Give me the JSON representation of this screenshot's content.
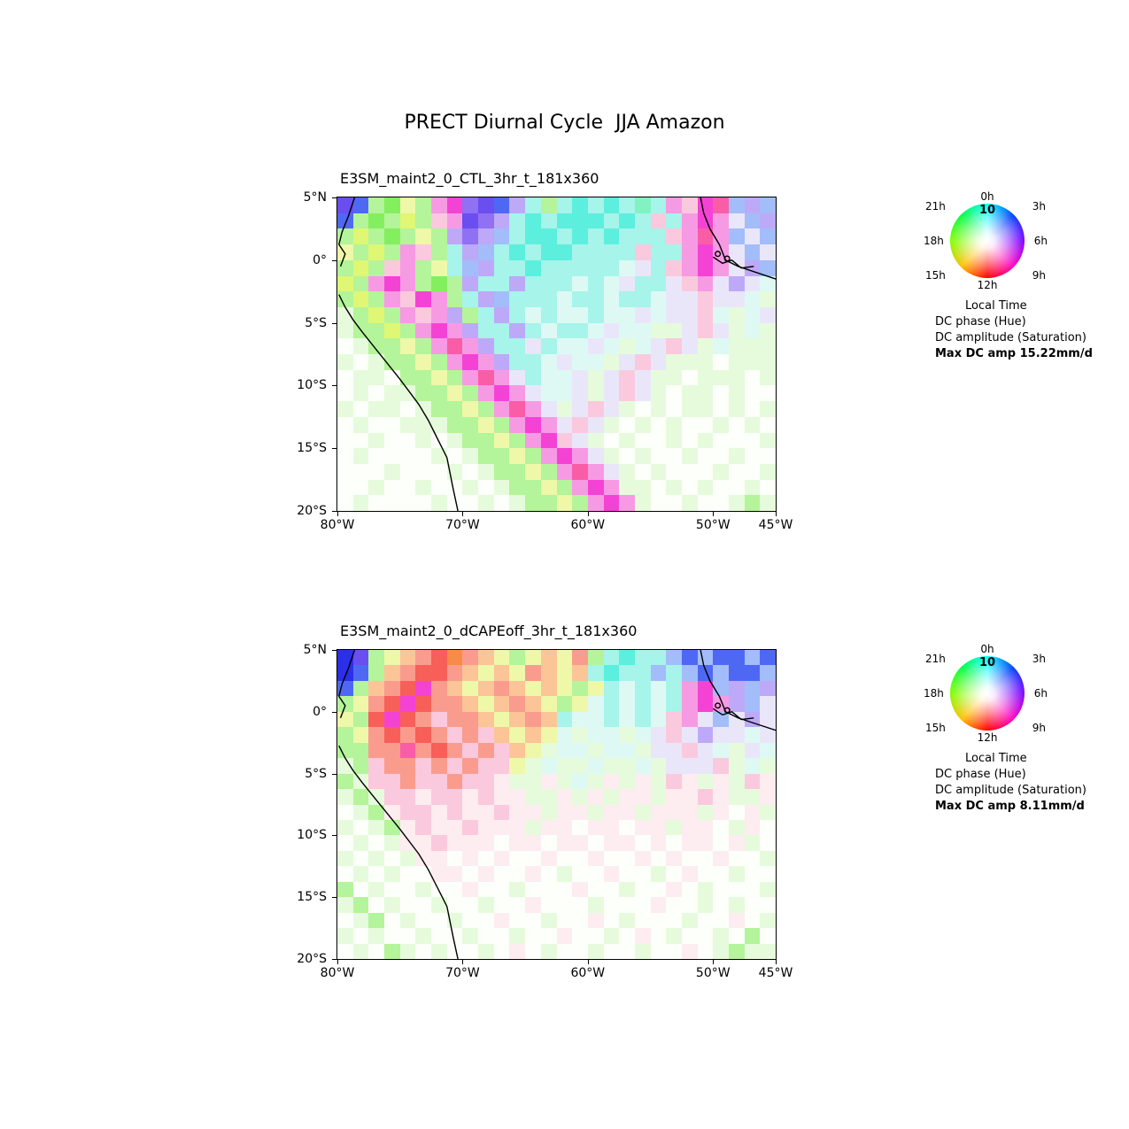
{
  "figure": {
    "title": "PRECT Diurnal Cycle  JJA Amazon"
  },
  "palette": {
    "W": "#fcfffa",
    "f": "#e6fbdc",
    "g": "#b4f49a",
    "G": "#84ef5e",
    "y": "#eef8a8",
    "Y": "#dff773",
    "u": "#def9f4",
    "c": "#a6f4ea",
    "C": "#5cefdd",
    "T": "#83f2c3",
    "b": "#a2bdfa",
    "B": "#4f68f4",
    "A": "#2b2fe8",
    "I": "#6a4ef0",
    "v": "#bda9f8",
    "V": "#9070f3",
    "l": "#eae6fa",
    "m": "#f79ae4",
    "M": "#f443d4",
    "P": "#f95da6",
    "p": "#fbc9dd",
    "e": "#fdecf0",
    "r": "#f99c8e",
    "R": "#f75f58",
    "o": "#fbc597",
    "O": "#f98b48"
  },
  "chart_data": [
    {
      "type": "heatmap",
      "title": "E3SM_maint2_0_CTL_3hr_t_181x360",
      "region": "JJA Amazon",
      "variable": "PRECT diurnal cycle phase (hue) and amplitude (saturation)",
      "x_ticks": {
        "labels": [
          "80°W",
          "70°W",
          "60°W",
          "50°W",
          "45°W"
        ],
        "pos": [
          0,
          0.2857,
          0.5714,
          0.8571,
          1
        ]
      },
      "y_ticks": {
        "labels": [
          "5°N",
          "0°",
          "5°S",
          "10°S",
          "15°S",
          "20°S"
        ],
        "pos": [
          0,
          0.2,
          0.4,
          0.6,
          0.8,
          1
        ]
      },
      "lon_range": [
        "80°W",
        "45°W"
      ],
      "lat_range": [
        "5°N",
        "20°S"
      ],
      "legend": {
        "clock_labels": [
          "0h",
          "3h",
          "6h",
          "9h",
          "12h",
          "15h",
          "18h",
          "21h"
        ],
        "amp_ring_label": "10",
        "lines": [
          "Local Time",
          "DC phase (Hue)",
          "DC amplitude (Saturation)"
        ],
        "max_line": "Max DC amp 15.22mm/d"
      },
      "rows": [
        "IBgGygmMVIBvcgcCcCcTcmpMPbvb",
        "BgGgYgpmIVvcCcCCCcCcpcmMmlbv",
        "gYgGgygvVvbcCCcCcCcccpmPmblb",
        "ygYgmpgcvbcCcCCccccpccmMmlbl",
        "gYgpmgycbvccCccccculcpmMmlvb",
        "YgmMmgGgvccvcccuculcclpmlvlu",
        "gYgmpMmgcvbcccuccuccullplluf",
        "fgYgmpmvgcvcucuucuulullpuful",
        "fggYgmMmvccvcucculuufflplfuf",
        "WfggygmPmvcclcuulufulplfufff",
        "fWfggygmMmvcculuuflplfffWfff",
        "WffWggygmPmlcuulflplffWfffWf",
        "WfWffggygmMmluulflplfWffWfWW",
        "fWffWfggygmPmlflplfWfWffWfWf",
        "WfWWfffggygmMmlplfWfWfWWfWfW",
        "WWfWWfWfggygmMplfWfWWfWfWWWf",
        "WfWWWWfWfggygmMmlfWfWWfWWfWW",
        "WWWfWWWfWfggygmPmlfWfWWWfWWf",
        "WWfWWfWWfWfggygmMmffWfWfWWfW",
        "WfWWWWfWWfWfggygmMmfWWfWWfgf"
      ]
    },
    {
      "type": "heatmap",
      "title": "E3SM_maint2_0_dCAPEoff_3hr_t_181x360",
      "region": "JJA Amazon",
      "variable": "PRECT diurnal cycle phase (hue) and amplitude (saturation)",
      "x_ticks": {
        "labels": [
          "80°W",
          "70°W",
          "60°W",
          "50°W",
          "45°W"
        ],
        "pos": [
          0,
          0.2857,
          0.5714,
          0.8571,
          1
        ]
      },
      "y_ticks": {
        "labels": [
          "5°N",
          "0°",
          "5°S",
          "10°S",
          "15°S",
          "20°S"
        ],
        "pos": [
          0,
          0.2,
          0.4,
          0.6,
          0.8,
          1
        ]
      },
      "lon_range": [
        "80°W",
        "45°W"
      ],
      "lat_range": [
        "5°N",
        "20°S"
      ],
      "legend": {
        "clock_labels": [
          "0h",
          "3h",
          "6h",
          "9h",
          "12h",
          "15h",
          "18h",
          "21h"
        ],
        "amp_ring_label": "10",
        "lines": [
          "Local Time",
          "DC phase (Hue)",
          "DC amplitude (Saturation)"
        ],
        "max_line": "Max DC amp 8.11mm/d"
      },
      "rows": [
        "AIgyorROroygyoyrgcCccbBbBBbB",
        "ABgorRRroyoyroyocCccbcbBbBBb",
        "BgorRMroyoroyoygycucucmMbvbv",
        "gyrRMRrroyoroygyucucucmMmvbl",
        "ygRMRrprroyorocuucucupmlblvl",
        "gyrRrRrprpoyoyufuufulplvllul",
        "ggrrPrRrprpoyfuufuufllpluflu",
        "fgprrprprppyfuffuffuflllpfuf",
        "gfpprpprppeffefufefefpefefpe",
        "fgfppeppepeeffefefeefeepeffe",
        "WfgeppepeepeefeefeefeeefeWef",
        "fWfgepeepeeefeeWeeWeefeeWfeW",
        "WfWfeepeeeWeeWeeWeeWeWeeWefW",
        "fWfWfeeWeWeWWeWWeWWeWeWWeWWf",
        "WfWfWWeeWeWWeWfWWeWWfWeWWfWW",
        "gWfWWfWWeWWfWWWeWWfWWeWfWWWf",
        "fgWfWWfWWfWWeWWWfWWWeWWfWfWW",
        "WfgWfWWfWWeWWfWWeWfWWWfWWeWf",
        "fWfWWfWWfWWfWWeWWfWeWfWWfWgW",
        "WfWgfWfWWfWeWfWWfWWfWWeWfgff"
      ]
    }
  ]
}
